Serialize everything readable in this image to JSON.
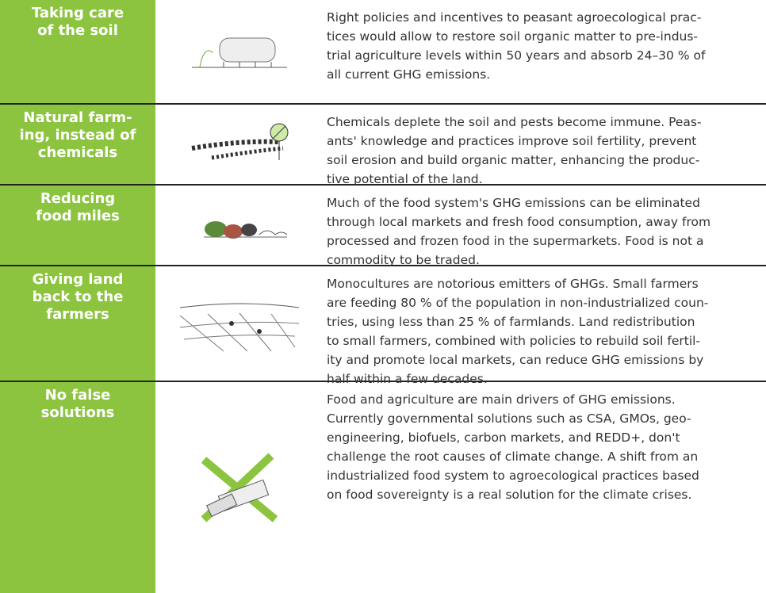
{
  "table": {
    "rows": [
      {
        "title": [
          "Taking care",
          "of the soil"
        ],
        "text": [
          "Right policies and incentives to peasant agroecological prac-",
          "tices would allow to restore soil organic matter to pre-indus-",
          "trial agriculture levels within 50 years and absorb 24–30 % of",
          "all current GHG emissions."
        ]
      },
      {
        "title": [
          "Natural farm-",
          "ing, instead of",
          "chemicals"
        ],
        "text": [
          "Chemicals deplete the soil and pests become immune. Peas-",
          "ants' knowledge and practices improve soil fertility, prevent",
          "soil erosion and build organic matter, enhancing the produc-",
          "tive potential of the land."
        ]
      },
      {
        "title": [
          "Reducing",
          "food miles"
        ],
        "text": [
          "Much of the food system's GHG emissions can be eliminated",
          "through local markets and fresh food consumption, away from",
          "processed and frozen food in the supermarkets. Food is not a",
          "commodity to be traded."
        ]
      },
      {
        "title": [
          "Giving land",
          "back to the",
          "farmers"
        ],
        "text": [
          "Monocultures are notorious emitters of GHGs. Small farmers",
          "are feeding 80 % of the population in non-industrialized coun-",
          "tries, using less than 25 % of farmlands. Land redistribution",
          "to small farmers, combined with policies to rebuild soil fertil-",
          "ity and promote local markets, can reduce GHG emissions by",
          "half within a few decades."
        ]
      },
      {
        "title": [
          "No false",
          "solutions"
        ],
        "text": [
          "Food and agriculture are main drivers of GHG emissions.",
          "Currently governmental solutions such as CSA, GMOs, geo-",
          "engineering, biofuels, carbon markets, and REDD+, don't",
          "challenge the root causes of climate change. A shift from an",
          "industrialized food system to agroecological practices based",
          "on food sovereignty is a real solution for the climate crises."
        ]
      }
    ]
  }
}
